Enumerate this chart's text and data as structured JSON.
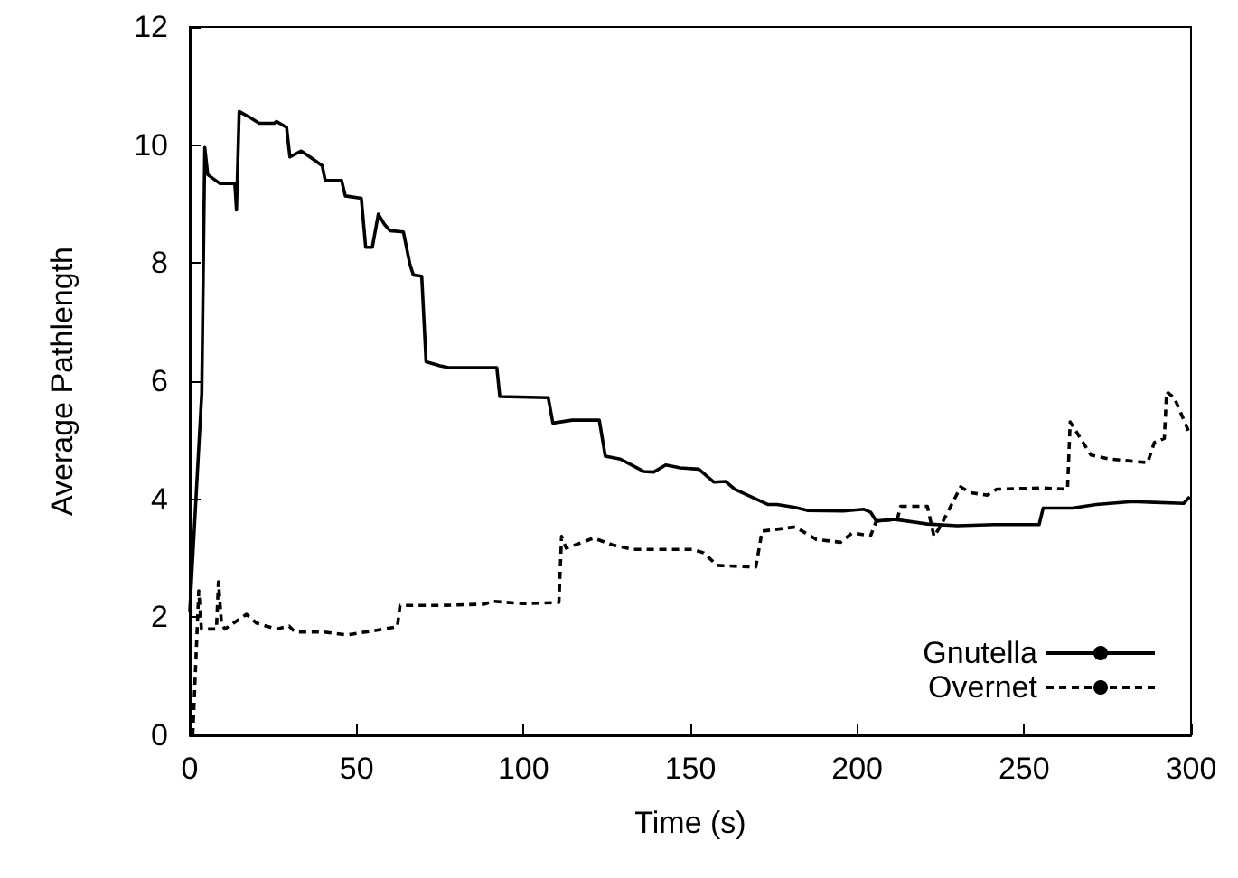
{
  "chart_data": {
    "type": "line",
    "xlabel": "Time (s)",
    "ylabel": "Average Pathlength",
    "xlim": [
      0,
      300
    ],
    "ylim": [
      0,
      12
    ],
    "xticks": [
      0,
      50,
      100,
      150,
      200,
      250,
      300
    ],
    "yticks": [
      0,
      2,
      4,
      6,
      8,
      10,
      12
    ],
    "grid": false,
    "legend": "bottom right",
    "marker": "none",
    "series": [
      {
        "name": "Gnutella",
        "color": "#000000",
        "line_style": "solid",
        "x": [
          0,
          3.6,
          4.5,
          5.4,
          9,
          13.5,
          14,
          14.8,
          18,
          20.8,
          25.3,
          26,
          29,
          30,
          33.4,
          36,
          39.7,
          40.6,
          45.5,
          46.6,
          51.4,
          52.7,
          54.7,
          56.5,
          58.3,
          60,
          64,
          66,
          67,
          69.5,
          70.8,
          75,
          77.6,
          92,
          92.9,
          107.4,
          108.8,
          114.6,
          122.7,
          124.5,
          129,
          136,
          139,
          142.6,
          147,
          152.5,
          157,
          160.6,
          163.3,
          173.3,
          176,
          181.4,
          185,
          195.8,
          202,
          204,
          205.7,
          211,
          221,
          230,
          241,
          254.5,
          255.7,
          264.4,
          271.6,
          282.4,
          297.8,
          299.6
        ],
        "values": [
          2.1,
          5.8,
          9.96,
          9.5,
          9.35,
          9.35,
          8.9,
          10.57,
          10.47,
          10.37,
          10.37,
          10.4,
          10.3,
          9.8,
          9.9,
          9.8,
          9.65,
          9.4,
          9.4,
          9.14,
          9.1,
          8.27,
          8.27,
          8.83,
          8.66,
          8.55,
          8.53,
          7.97,
          7.8,
          7.78,
          6.33,
          6.26,
          6.23,
          6.23,
          5.74,
          5.72,
          5.29,
          5.34,
          5.34,
          4.73,
          4.68,
          4.47,
          4.46,
          4.58,
          4.53,
          4.51,
          4.29,
          4.3,
          4.17,
          3.91,
          3.91,
          3.86,
          3.81,
          3.8,
          3.83,
          3.78,
          3.63,
          3.66,
          3.58,
          3.55,
          3.57,
          3.57,
          3.85,
          3.85,
          3.91,
          3.96,
          3.93,
          4.04
        ]
      },
      {
        "name": "Overnet",
        "color": "#000000",
        "line_style": "dashed",
        "x": [
          0.9,
          2.7,
          3.5,
          8,
          8.6,
          9.5,
          10.5,
          17,
          20,
          26,
          29.8,
          31.5,
          40,
          47,
          55,
          62.2,
          63,
          75,
          88,
          91,
          100,
          110.6,
          111.4,
          112.8,
          121,
          127,
          132.5,
          150.6,
          154,
          158,
          169.6,
          171.5,
          181.4,
          187.7,
          195,
          198.5,
          204,
          205.7,
          212,
          213,
          221,
          223,
          225,
          231,
          233.8,
          239,
          241.8,
          255.4,
          263,
          263.8,
          270,
          275.6,
          287,
          289,
          292,
          292.7,
          295,
          299.6
        ],
        "values": [
          0,
          2.45,
          1.8,
          1.8,
          2.6,
          1.9,
          1.8,
          2.05,
          1.9,
          1.8,
          1.85,
          1.75,
          1.75,
          1.7,
          1.77,
          1.84,
          2.2,
          2.2,
          2.22,
          2.27,
          2.23,
          2.25,
          3.37,
          3.17,
          3.34,
          3.22,
          3.15,
          3.15,
          3.09,
          2.88,
          2.85,
          3.46,
          3.53,
          3.32,
          3.27,
          3.43,
          3.38,
          3.63,
          3.66,
          3.88,
          3.88,
          3.37,
          3.55,
          4.21,
          4.11,
          4.07,
          4.17,
          4.19,
          4.17,
          5.31,
          4.75,
          4.68,
          4.62,
          4.96,
          5.03,
          5.82,
          5.72,
          5.11
        ]
      }
    ]
  }
}
